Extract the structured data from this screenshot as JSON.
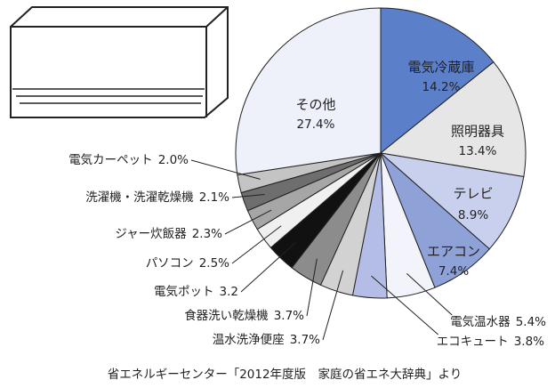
{
  "chart_data": {
    "type": "pie",
    "categories": [
      "電気冷蔵庫",
      "照明器具",
      "テレビ",
      "エアコン",
      "電気温水器",
      "エコキュート",
      "温水洗浄便座",
      "食器洗い乾燥機",
      "電気ポット",
      "パソコン",
      "ジャー炊飯器",
      "洗濯機・洗濯乾燥機",
      "電気カーペット",
      "その他"
    ],
    "values": [
      14.2,
      13.4,
      8.9,
      7.4,
      5.4,
      3.8,
      3.7,
      3.7,
      3.2,
      2.5,
      2.3,
      2.1,
      2.0,
      27.4
    ],
    "value_labels": [
      "14.2%",
      "13.4%",
      "8.9%",
      "7.4%",
      "5.4%",
      "3.8%",
      "3.7%",
      "3.7%",
      "3.2",
      "2.5%",
      "2.3%",
      "2.1%",
      "2.0%",
      "27.4%"
    ],
    "colors": [
      "#5b7fc9",
      "#e6e6e6",
      "#c9d0ee",
      "#8ea2d8",
      "#f2f3fb",
      "#b4bde6",
      "#d2d2d2",
      "#8c8c8c",
      "#111111",
      "#f0f0f0",
      "#a6a6a6",
      "#6e6e6e",
      "#c4c4c4",
      "#eef0fa"
    ],
    "source": "省エネルギーセンター「2012年度版　家庭の省エネ大辞典」より"
  }
}
